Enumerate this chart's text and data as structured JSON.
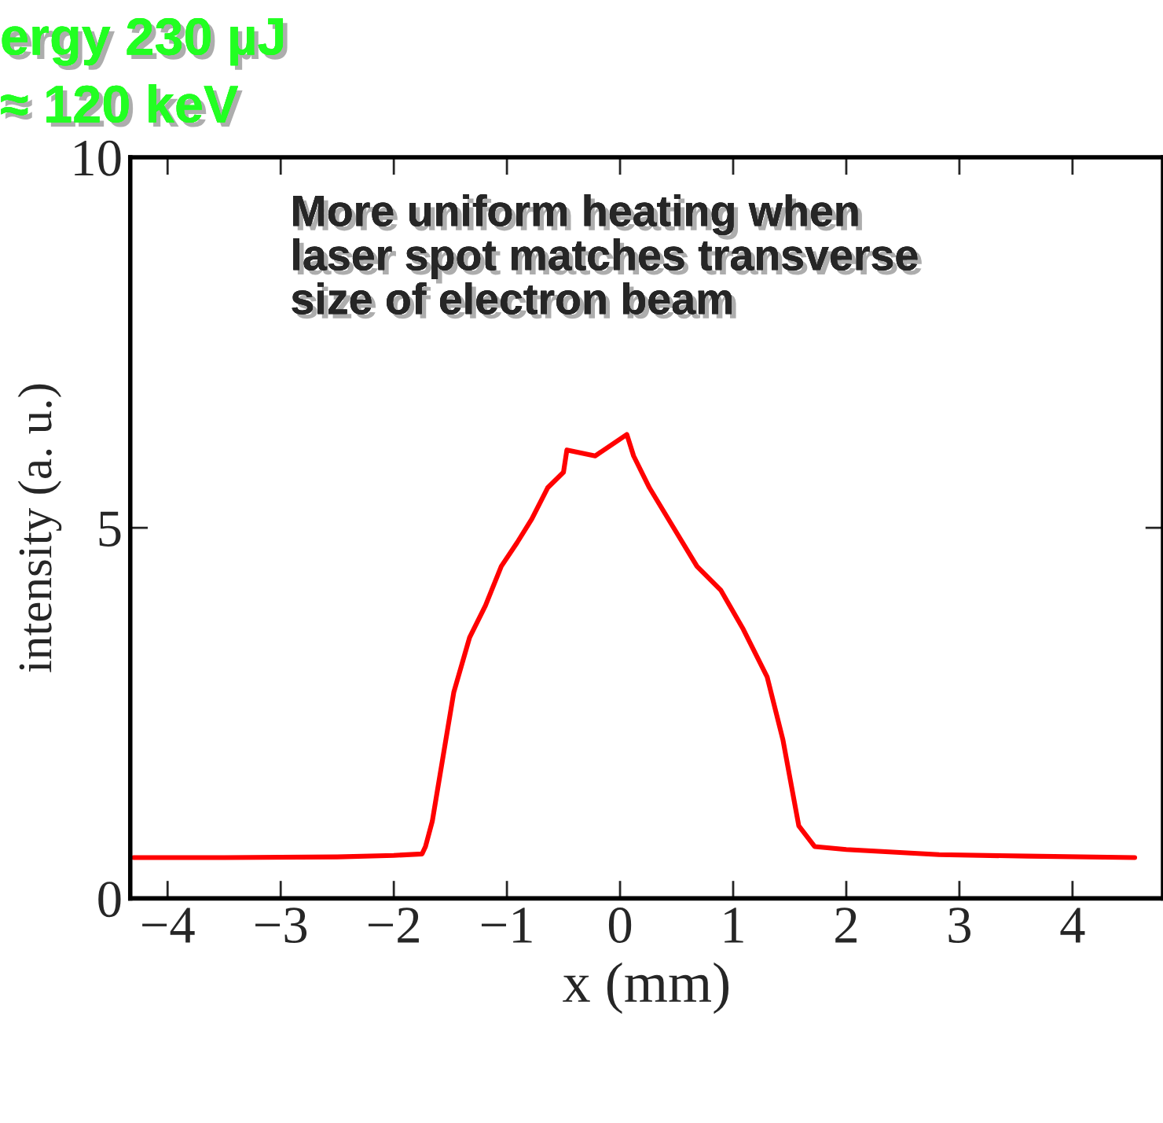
{
  "chart_data": {
    "type": "line",
    "title": "ergy 230 µJ",
    "subtitle": "≈ 120 keV",
    "xlabel": "x (mm)",
    "ylabel": "intensity (a. u.)",
    "annotations": [
      "More uniform heating when\nlaser spot matches transverse\nsize of electron beam"
    ],
    "x": [
      -4.3,
      -3.5,
      -2.5,
      -2.0,
      -1.75,
      -1.72,
      -1.66,
      -1.54,
      -1.47,
      -1.33,
      -1.19,
      -1.05,
      -0.91,
      -0.78,
      -0.64,
      -0.5,
      -0.47,
      -0.22,
      0.06,
      0.12,
      0.26,
      0.47,
      0.68,
      0.89,
      1.09,
      1.3,
      1.44,
      1.58,
      1.72,
      2.0,
      2.82,
      3.6,
      4.55
    ],
    "series": [
      {
        "color": "#ff0000",
        "values": [
          0.55,
          0.55,
          0.56,
          0.58,
          0.6,
          0.7,
          1.04,
          2.14,
          2.78,
          3.52,
          3.95,
          4.48,
          4.8,
          5.12,
          5.54,
          5.75,
          6.05,
          5.97,
          6.26,
          5.97,
          5.54,
          5.01,
          4.48,
          4.16,
          3.63,
          2.99,
          2.14,
          0.98,
          0.7,
          0.66,
          0.59,
          0.57,
          0.55
        ]
      }
    ],
    "xlim": [
      -4.33,
      4.8
    ],
    "ylim": [
      0,
      10
    ],
    "xticks": [
      {
        "value": -4,
        "label": "−4"
      },
      {
        "value": -3,
        "label": "−3"
      },
      {
        "value": -2,
        "label": "−2"
      },
      {
        "value": -1,
        "label": "−1"
      },
      0,
      1,
      2,
      3,
      4
    ],
    "yticks": [
      0,
      5,
      10
    ],
    "grid": false,
    "legend": false
  }
}
